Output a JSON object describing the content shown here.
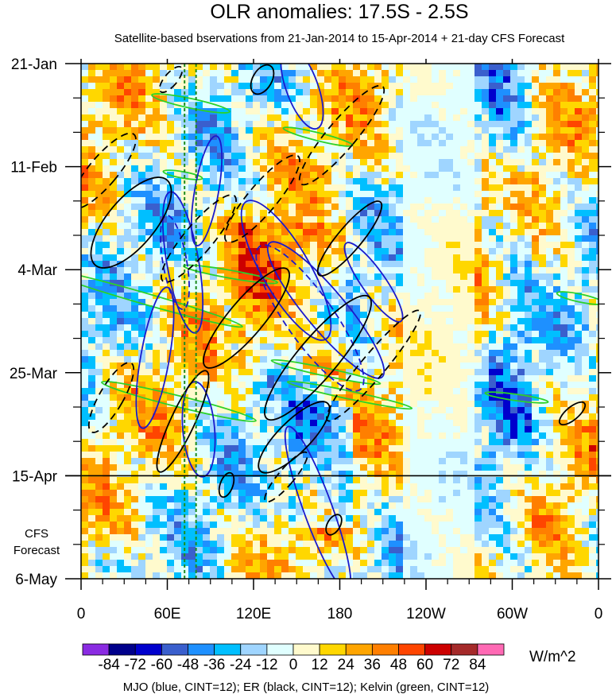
{
  "chart_data": {
    "type": "heatmap",
    "title": "OLR anomalies: 17.5S - 2.5S",
    "subtitle": "Satellite-based bservations from 21-Jan-2014 to 15-Apr-2014 + 21-day CFS Forecast",
    "x_ticks": [
      "0",
      "60E",
      "120E",
      "180",
      "120W",
      "60W",
      "0"
    ],
    "x_tick_values": [
      0,
      60,
      120,
      180,
      240,
      300,
      360
    ],
    "xlim": [
      0,
      360
    ],
    "y_ticks": [
      "21-Jan",
      "11-Feb",
      "4-Mar",
      "25-Mar",
      "15-Apr",
      "6-May"
    ],
    "y_tick_values": [
      "2014-01-21",
      "2014-02-11",
      "2014-03-04",
      "2014-03-25",
      "2014-04-15",
      "2014-05-06"
    ],
    "ylim": [
      "2014-01-21",
      "2014-05-06"
    ],
    "observation_end": "2014-04-15",
    "forecast_label_line1": "CFS",
    "forecast_label_line2": "Forecast",
    "colorbar": {
      "levels": [
        "-84",
        "-72",
        "-60",
        "-48",
        "-36",
        "-24",
        "-12",
        "0",
        "12",
        "24",
        "36",
        "48",
        "60",
        "72",
        "84"
      ],
      "colors": [
        "#8a2be2",
        "#00008b",
        "#0000cd",
        "#3a5fcd",
        "#1e90ff",
        "#00bfff",
        "#9fd5ff",
        "#e0ffff",
        "#fffacd",
        "#ffd700",
        "#ffa500",
        "#ff7f00",
        "#ff4500",
        "#cc0000",
        "#a52a2a",
        "#ff69b4"
      ],
      "units": "W/m^2"
    },
    "contours_caption": "MJO (blue, CINT=12); ER (black, CINT=12); Kelvin (green, CINT=12)",
    "reference_longitudes": [
      72,
      80
    ]
  }
}
